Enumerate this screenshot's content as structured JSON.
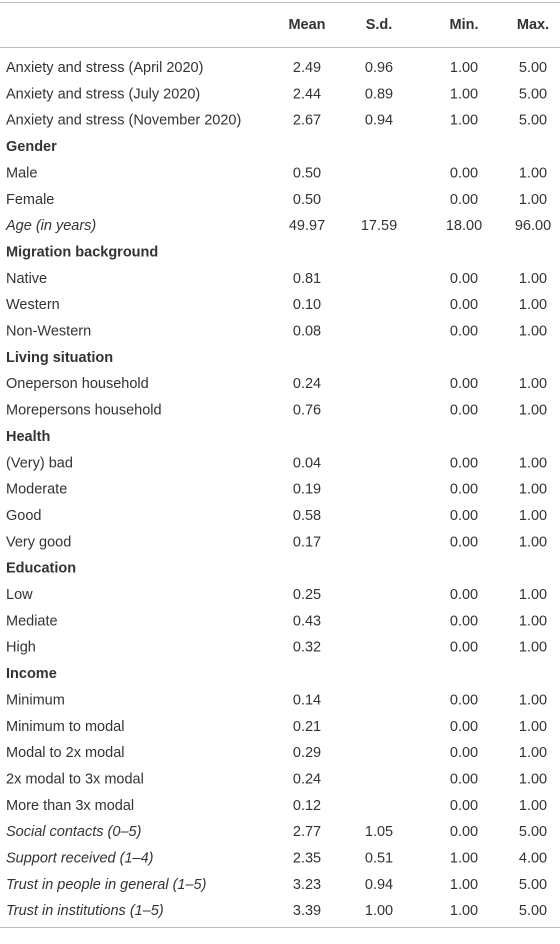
{
  "table": {
    "columns": [
      "Mean",
      "S.d.",
      "Min.",
      "Max."
    ],
    "rows": [
      {
        "label": "Anxiety and stress (April 2020)",
        "cells": [
          "2.49",
          "0.96",
          "1.00",
          "5.00"
        ]
      },
      {
        "label": "Anxiety and stress (July 2020)",
        "cells": [
          "2.44",
          "0.89",
          "1.00",
          "5.00"
        ]
      },
      {
        "label": "Anxiety and stress (November 2020)",
        "cells": [
          "2.67",
          "0.94",
          "1.00",
          "5.00"
        ]
      },
      {
        "label": "Gender",
        "style": "section"
      },
      {
        "label": "Male",
        "cells": [
          "0.50",
          null,
          "0.00",
          "1.00"
        ]
      },
      {
        "label": "Female",
        "cells": [
          "0.50",
          null,
          "0.00",
          "1.00"
        ]
      },
      {
        "label": "Age (in years)",
        "style": "italic",
        "cells": [
          "49.97",
          "17.59",
          "18.00",
          "96.00"
        ]
      },
      {
        "label": "Migration background",
        "style": "section"
      },
      {
        "label": "Native",
        "cells": [
          "0.81",
          null,
          "0.00",
          "1.00"
        ]
      },
      {
        "label": "Western",
        "cells": [
          "0.10",
          null,
          "0.00",
          "1.00"
        ]
      },
      {
        "label": "Non-Western",
        "cells": [
          "0.08",
          null,
          "0.00",
          "1.00"
        ]
      },
      {
        "label": "Living situation",
        "style": "section"
      },
      {
        "label": "Oneperson household",
        "cells": [
          "0.24",
          null,
          "0.00",
          "1.00"
        ]
      },
      {
        "label": "Morepersons household",
        "cells": [
          "0.76",
          null,
          "0.00",
          "1.00"
        ]
      },
      {
        "label": "Health",
        "style": "section"
      },
      {
        "label": "(Very) bad",
        "cells": [
          "0.04",
          null,
          "0.00",
          "1.00"
        ]
      },
      {
        "label": "Moderate",
        "cells": [
          "0.19",
          null,
          "0.00",
          "1.00"
        ]
      },
      {
        "label": "Good",
        "cells": [
          "0.58",
          null,
          "0.00",
          "1.00"
        ]
      },
      {
        "label": "Very good",
        "cells": [
          "0.17",
          null,
          "0.00",
          "1.00"
        ]
      },
      {
        "label": "Education",
        "style": "section"
      },
      {
        "label": "Low",
        "cells": [
          "0.25",
          null,
          "0.00",
          "1.00"
        ]
      },
      {
        "label": "Mediate",
        "cells": [
          "0.43",
          null,
          "0.00",
          "1.00"
        ]
      },
      {
        "label": "High",
        "cells": [
          "0.32",
          null,
          "0.00",
          "1.00"
        ]
      },
      {
        "label": "Income",
        "style": "section"
      },
      {
        "label": "Minimum",
        "cells": [
          "0.14",
          null,
          "0.00",
          "1.00"
        ]
      },
      {
        "label": "Minimum to modal",
        "cells": [
          "0.21",
          null,
          "0.00",
          "1.00"
        ]
      },
      {
        "label": "Modal to 2x modal",
        "cells": [
          "0.29",
          null,
          "0.00",
          "1.00"
        ]
      },
      {
        "label": "2x modal to 3x modal",
        "cells": [
          "0.24",
          null,
          "0.00",
          "1.00"
        ]
      },
      {
        "label": "More than 3x modal",
        "cells": [
          "0.12",
          null,
          "0.00",
          "1.00"
        ]
      },
      {
        "label": "Social contacts (0–5)",
        "style": "italic",
        "cells": [
          "2.77",
          "1.05",
          "0.00",
          "5.00"
        ]
      },
      {
        "label": "Support received (1–4)",
        "style": "italic",
        "cells": [
          "2.35",
          "0.51",
          "1.00",
          "4.00"
        ]
      },
      {
        "label": "Trust in people in general (1–5)",
        "style": "italic",
        "cells": [
          "3.23",
          "0.94",
          "1.00",
          "5.00"
        ]
      },
      {
        "label": "Trust in institutions (1–5)",
        "style": "italic",
        "cells": [
          "3.39",
          "1.00",
          "1.00",
          "5.00"
        ]
      }
    ]
  }
}
